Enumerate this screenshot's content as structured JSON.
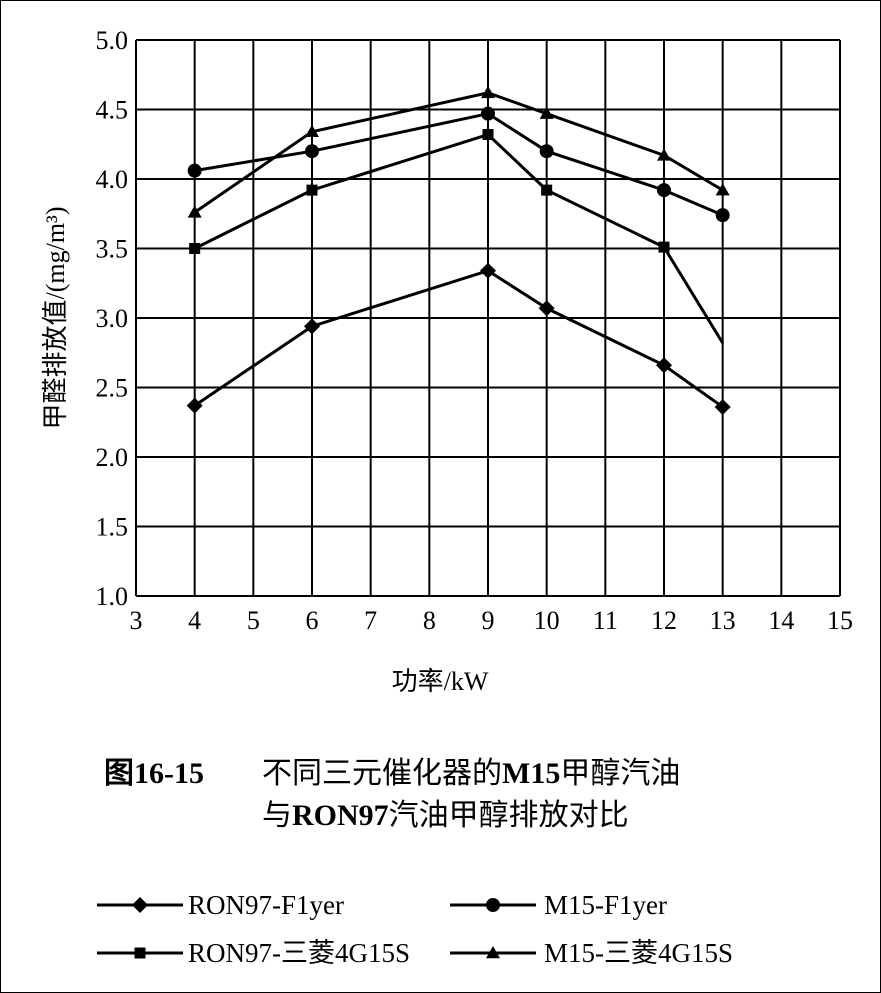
{
  "chart_data": {
    "type": "line",
    "xlabel": "功率/kW",
    "ylabel": "甲醛排放值/(mg/m³)",
    "xlim": [
      3,
      15
    ],
    "ylim": [
      1.0,
      5.0
    ],
    "xticks": [
      "3",
      "4",
      "5",
      "6",
      "7",
      "8",
      "9",
      "10",
      "11",
      "12",
      "13",
      "14",
      "15"
    ],
    "yticks": [
      "1.0",
      "1.5",
      "2.0",
      "2.5",
      "3.0",
      "3.5",
      "4.0",
      "4.5",
      "5.0"
    ],
    "grid": true,
    "legend_position": "bottom",
    "series": [
      {
        "name": "RON97-F1yer",
        "marker": "diamond",
        "x": [
          4,
          6,
          9,
          10,
          12,
          13
        ],
        "values": [
          2.37,
          2.94,
          3.34,
          3.07,
          2.66,
          2.36
        ]
      },
      {
        "name": "M15-F1yer",
        "marker": "circle",
        "x": [
          4,
          6,
          9,
          10,
          12,
          13
        ],
        "values": [
          4.06,
          4.2,
          4.47,
          4.2,
          3.92,
          3.74
        ]
      },
      {
        "name": "RON97-三菱4G15S",
        "marker": "square",
        "x": [
          4,
          6,
          9,
          10,
          12,
          13
        ],
        "values": [
          3.5,
          3.92,
          4.32,
          3.92,
          3.51,
          2.82
        ],
        "marker_mask": [
          true,
          true,
          true,
          true,
          true,
          false
        ]
      },
      {
        "name": "M15-三菱4G15S",
        "marker": "triangle",
        "x": [
          4,
          6,
          9,
          10,
          12,
          13
        ],
        "values": [
          3.76,
          4.34,
          4.62,
          4.47,
          4.17,
          3.92
        ]
      }
    ]
  },
  "caption": {
    "figure_number": "图16-15",
    "line1_a": "不同三元催化器的",
    "line1_b": "M15",
    "line1_c": "甲醇汽油",
    "line2_a": "与",
    "line2_b": "RON97",
    "line2_c": "汽油甲醇排放对比"
  }
}
